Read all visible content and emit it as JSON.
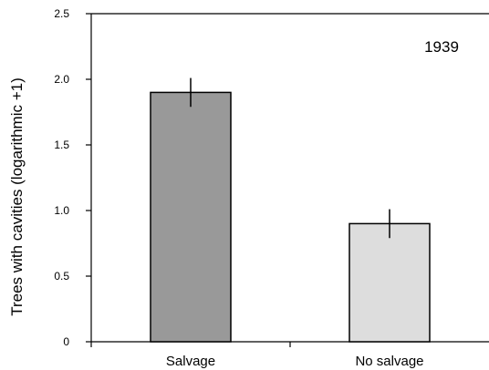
{
  "chart_data": {
    "type": "bar",
    "annotation": "1939",
    "categories": [
      "Salvage",
      "No salvage"
    ],
    "values": [
      1.9,
      0.9
    ],
    "error_bars": [
      0.11,
      0.11
    ],
    "bar_colors": [
      "#999999",
      "#dddddd"
    ],
    "ylabel": "Trees with cavities (logarithmic +1)",
    "xlabel": "",
    "ylim": [
      0,
      2.5
    ],
    "yticks": [
      "0",
      "0.5",
      "1.0",
      "1.5",
      "2.0",
      "2.5"
    ],
    "grid": false
  }
}
